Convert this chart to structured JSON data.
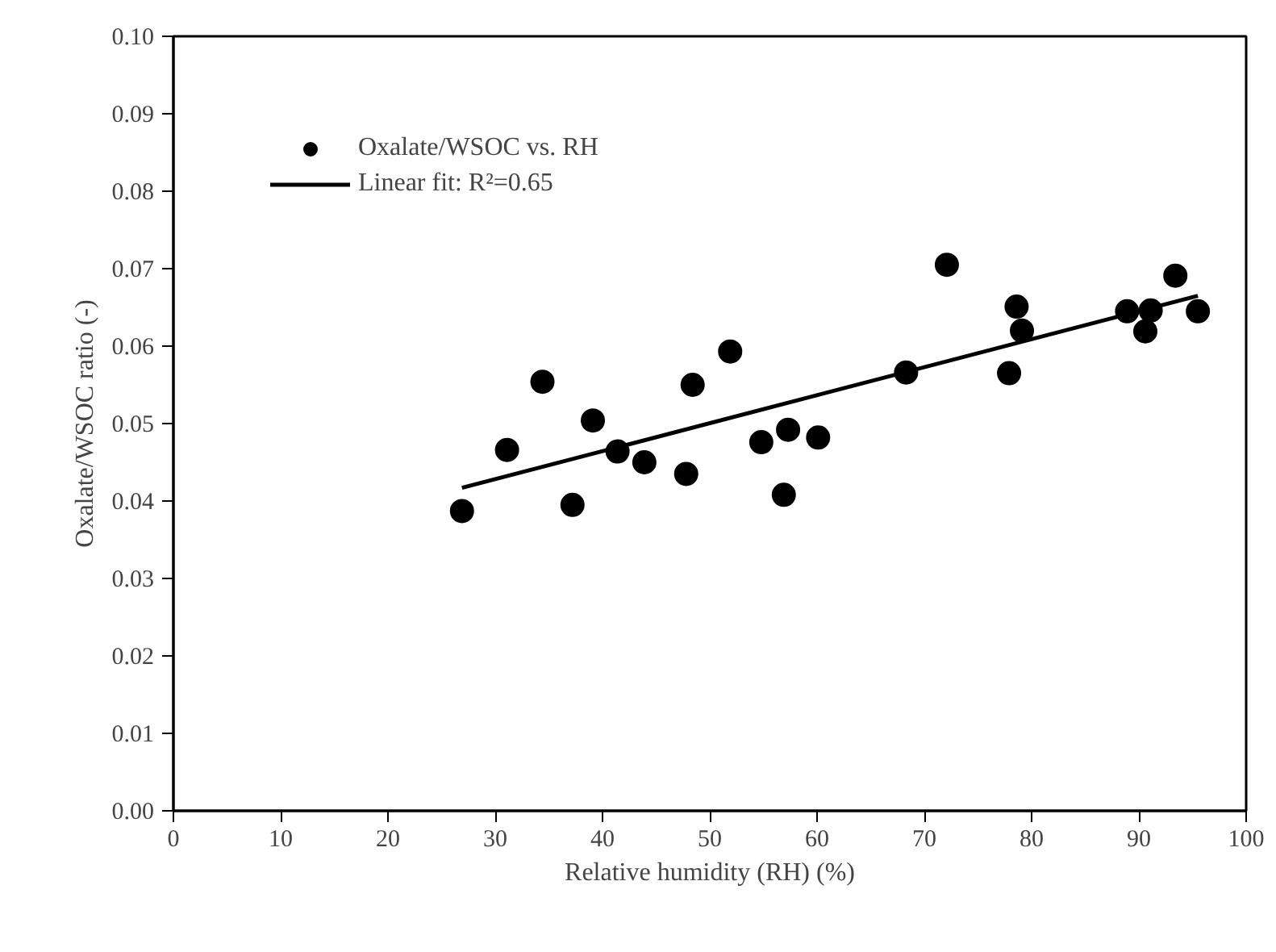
{
  "chart_data": {
    "type": "scatter",
    "xlabel": "Relative humidity (RH) (%)",
    "ylabel": "Oxalate/WSOC ratio (-)",
    "xlim": [
      0,
      100
    ],
    "xticks": [
      0,
      10,
      20,
      30,
      40,
      50,
      60,
      70,
      80,
      90,
      100
    ],
    "ylim": [
      0,
      0.1
    ],
    "yticks": [
      {
        "value": 0,
        "label": "0.00"
      },
      0.01,
      0.02,
      0.03,
      0.04,
      0.05,
      0.06,
      0.07,
      0.08,
      0.09,
      {
        "value": 0.1,
        "label": "0.10"
      }
    ],
    "grid": false,
    "legend": "top left",
    "series": [
      {
        "name": "Oxalate/WSOC vs. RH",
        "marker": "circle",
        "color": "#000000",
        "x": [
          26.9,
          31.1,
          34.4,
          37.2,
          39.1,
          41.4,
          43.9,
          47.8,
          48.4,
          51.9,
          54.8,
          57.3,
          56.9,
          60.1,
          68.3,
          72.1,
          77.9,
          78.6,
          79.1,
          88.9,
          90.6,
          91.1,
          93.4,
          95.5
        ],
        "values": [
          0.0387,
          0.0466,
          0.0554,
          0.0395,
          0.0504,
          0.0464,
          0.045,
          0.0435,
          0.055,
          0.0593,
          0.0476,
          0.0492,
          0.0408,
          0.0482,
          0.0566,
          0.0705,
          0.0565,
          0.0651,
          0.062,
          0.0645,
          0.0619,
          0.0646,
          0.0691,
          0.0645
        ]
      },
      {
        "name": "Linear fit: R²=0.65",
        "type": "line",
        "color": "#000000",
        "line_style": "solid",
        "marker": "none",
        "x": [
          26.9,
          95.5
        ],
        "values": [
          0.0417,
          0.0665
        ]
      }
    ]
  }
}
